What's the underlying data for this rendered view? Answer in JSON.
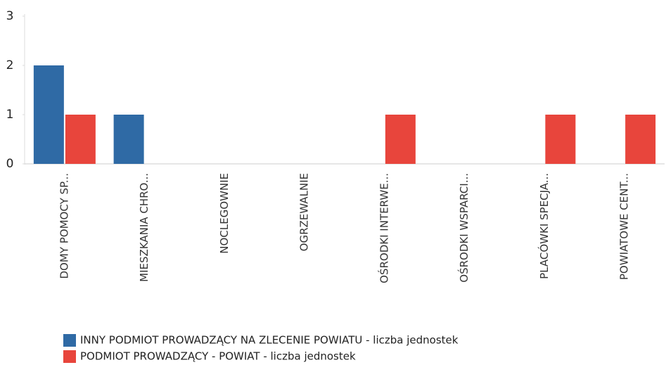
{
  "chart_data": {
    "type": "bar",
    "categories": [
      "DOMY POMOCY SP...",
      "MIESZKANIA CHRO...",
      "NOCLEGOWNIE",
      "OGRZEWALNIE",
      "OŚRODKI INTERWE...",
      "OŚRODKI WSPARCI...",
      "PLACÓWKI SPECJA...",
      "POWIATOWE CENT..."
    ],
    "series": [
      {
        "name": "INNY PODMIOT PROWADZĄCY NA ZLECENIE POWIATU - liczba jednostek",
        "color": "#2f6aa5",
        "values": [
          2,
          1,
          0,
          0,
          0,
          0,
          0,
          0
        ]
      },
      {
        "name": "PODMIOT PROWADZĄCY - POWIAT - liczba jednostek",
        "color": "#e8453c",
        "values": [
          1,
          0,
          0,
          0,
          1,
          0,
          1,
          1
        ]
      }
    ],
    "ylim": [
      0,
      3
    ],
    "yticks": [
      0,
      1,
      2,
      3
    ],
    "grid": false
  }
}
